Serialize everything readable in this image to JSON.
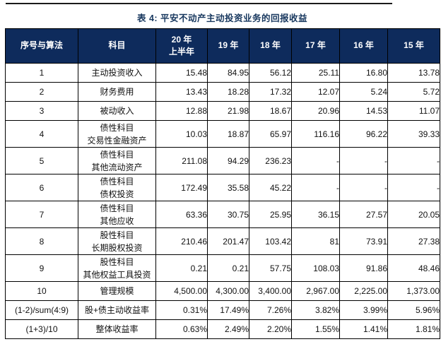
{
  "page": {
    "title": "表 4: 平安不动产主动投资业务的回报收益"
  },
  "colors": {
    "header_bg": "#0e2b5c",
    "title_text": "#17375e",
    "top_rule": "#1a1a1a",
    "grid_line": "#000000"
  },
  "table": {
    "columns": [
      "序号与算法",
      "科目",
      "20 年\n上半年",
      "19 年",
      "18 年",
      "17 年",
      "16 年",
      "15 年"
    ],
    "rows": [
      {
        "algo": "1",
        "subject": "主动投资收入",
        "values": [
          "15.48",
          "84.95",
          "56.12",
          "25.11",
          "16.80",
          "13.78"
        ]
      },
      {
        "algo": "2",
        "subject": "财务费用",
        "values": [
          "13.43",
          "18.28",
          "17.32",
          "12.07",
          "5.24",
          "5.72"
        ]
      },
      {
        "algo": "3",
        "subject": "被动收入",
        "values": [
          "12.88",
          "21.98",
          "18.67",
          "20.96",
          "14.53",
          "11.07"
        ]
      },
      {
        "algo": "4",
        "subject": "债性科目\n交易性金融资产",
        "values": [
          "10.03",
          "18.87",
          "65.97",
          "116.16",
          "96.22",
          "39.33"
        ]
      },
      {
        "algo": "5",
        "subject": "债性科目\n其他流动资产",
        "values": [
          "211.08",
          "94.29",
          "236.23",
          "-",
          "-",
          "-"
        ]
      },
      {
        "algo": "6",
        "subject": "债性科目\n债权投资",
        "values": [
          "172.49",
          "35.58",
          "45.22",
          "-",
          "-",
          "-"
        ]
      },
      {
        "algo": "7",
        "subject": "债性科目\n其他应收",
        "values": [
          "63.36",
          "30.75",
          "25.95",
          "36.15",
          "27.57",
          "20.05"
        ]
      },
      {
        "algo": "8",
        "subject": "股性科目\n长期股权投资",
        "values": [
          "210.46",
          "201.47",
          "103.42",
          "81",
          "73.91",
          "27.38"
        ]
      },
      {
        "algo": "9",
        "subject": "股性科目\n其他权益工具投资",
        "values": [
          "0.21",
          "0.21",
          "57.75",
          "108.03",
          "91.86",
          "48.46"
        ]
      },
      {
        "algo": "10",
        "subject": "管理规模",
        "values": [
          "4,500.00",
          "4,300.00",
          "3,400.00",
          "2,967.00",
          "2,225.00",
          "1,373.00"
        ]
      },
      {
        "algo": "(1-2)/sum(4:9)",
        "subject": "股+债主动收益率",
        "values": [
          "0.31%",
          "17.49%",
          "7.26%",
          "3.82%",
          "3.99%",
          "5.96%"
        ]
      },
      {
        "algo": "(1+3)/10",
        "subject": "整体收益率",
        "values": [
          "0.63%",
          "2.49%",
          "2.20%",
          "1.55%",
          "1.41%",
          "1.81%"
        ]
      }
    ]
  }
}
